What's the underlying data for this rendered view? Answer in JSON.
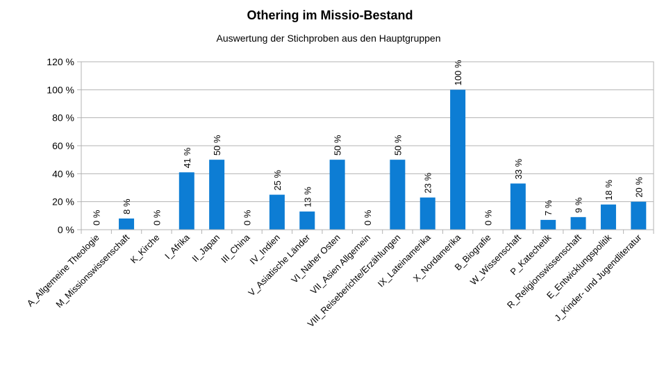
{
  "chart_data": {
    "type": "bar",
    "title": "Othering im Missio-Bestand",
    "subtitle": "Auswertung der Stichproben aus den Hauptgruppen",
    "xlabel": "",
    "ylabel": "",
    "ylim": [
      0,
      120
    ],
    "ytick_step": 20,
    "yticks": [
      "0 %",
      "20 %",
      "40 %",
      "60 %",
      "80 %",
      "100 %",
      "120 %"
    ],
    "grid": true,
    "bar_color": "#0d7dd4",
    "categories": [
      "A_Allgemeine Theologie",
      "M_Missionswissenschaft",
      "K_Kirche",
      "I_Afrika",
      "II_Japan",
      "III_China",
      "IV_Indien",
      "V_Asiatische Länder",
      "VI_Naher Osten",
      "VII_Asien Allgemein",
      "VIII_Reiseberichte/Erzählungen",
      "IX_Lateinamerika",
      "X_Nordamerika",
      "B_Biografie",
      "W_Wissenschaft",
      "P_Katechetik",
      "R_Religionswissenschaft",
      "E_Entwicklungspolitik",
      "J_Kinder- und Jugendliteratur"
    ],
    "values": [
      0,
      8,
      0,
      41,
      50,
      0,
      25,
      13,
      50,
      0,
      50,
      23,
      100,
      0,
      33,
      7,
      9,
      18,
      20
    ],
    "data_labels": [
      "0 %",
      "8 %",
      "0 %",
      "41 %",
      "50 %",
      "0 %",
      "25 %",
      "13 %",
      "50 %",
      "0 %",
      "50 %",
      "23 %",
      "100 %",
      "0 %",
      "33 %",
      "7 %",
      "9 %",
      "18 %",
      "20 %"
    ]
  }
}
